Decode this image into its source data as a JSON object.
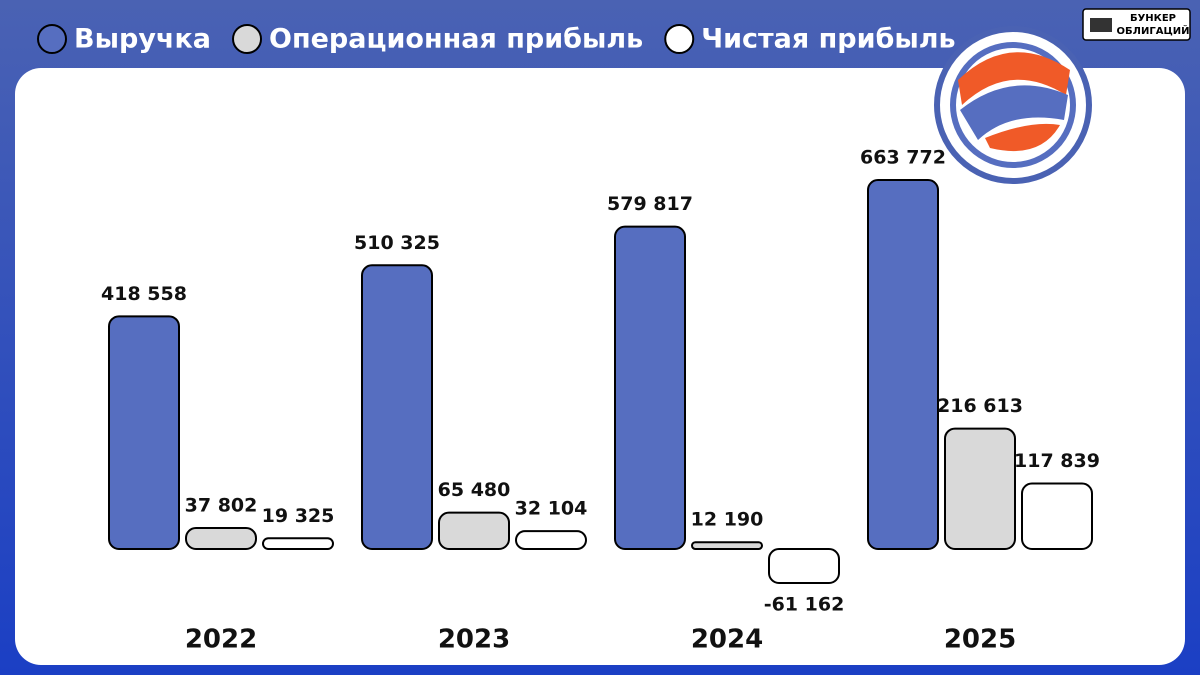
{
  "chart_data": {
    "type": "bar",
    "categories": [
      "2022",
      "2023",
      "2024",
      "2025"
    ],
    "series": [
      {
        "name": "Выручка",
        "color": "#566ec0",
        "values": [
          418558,
          510325,
          579817,
          663772
        ],
        "value_labels": [
          "418 558",
          "510 325",
          "579 817",
          "663 772"
        ]
      },
      {
        "name": "Операционная прибыль",
        "color": "#d9d9d9",
        "values": [
          37802,
          65480,
          12190,
          216613
        ],
        "value_labels": [
          "37 802",
          "65 480",
          "12 190",
          "216 613"
        ]
      },
      {
        "name": "Чистая прибыль",
        "color": "#ffffff",
        "values": [
          19325,
          32104,
          -61162,
          117839
        ],
        "value_labels": [
          "19 325",
          "32 104",
          "-61 162",
          "117 839"
        ]
      }
    ]
  },
  "brand": {
    "line1": "БУНКЕР",
    "line2": "ОБЛИГАЦИЙ"
  }
}
